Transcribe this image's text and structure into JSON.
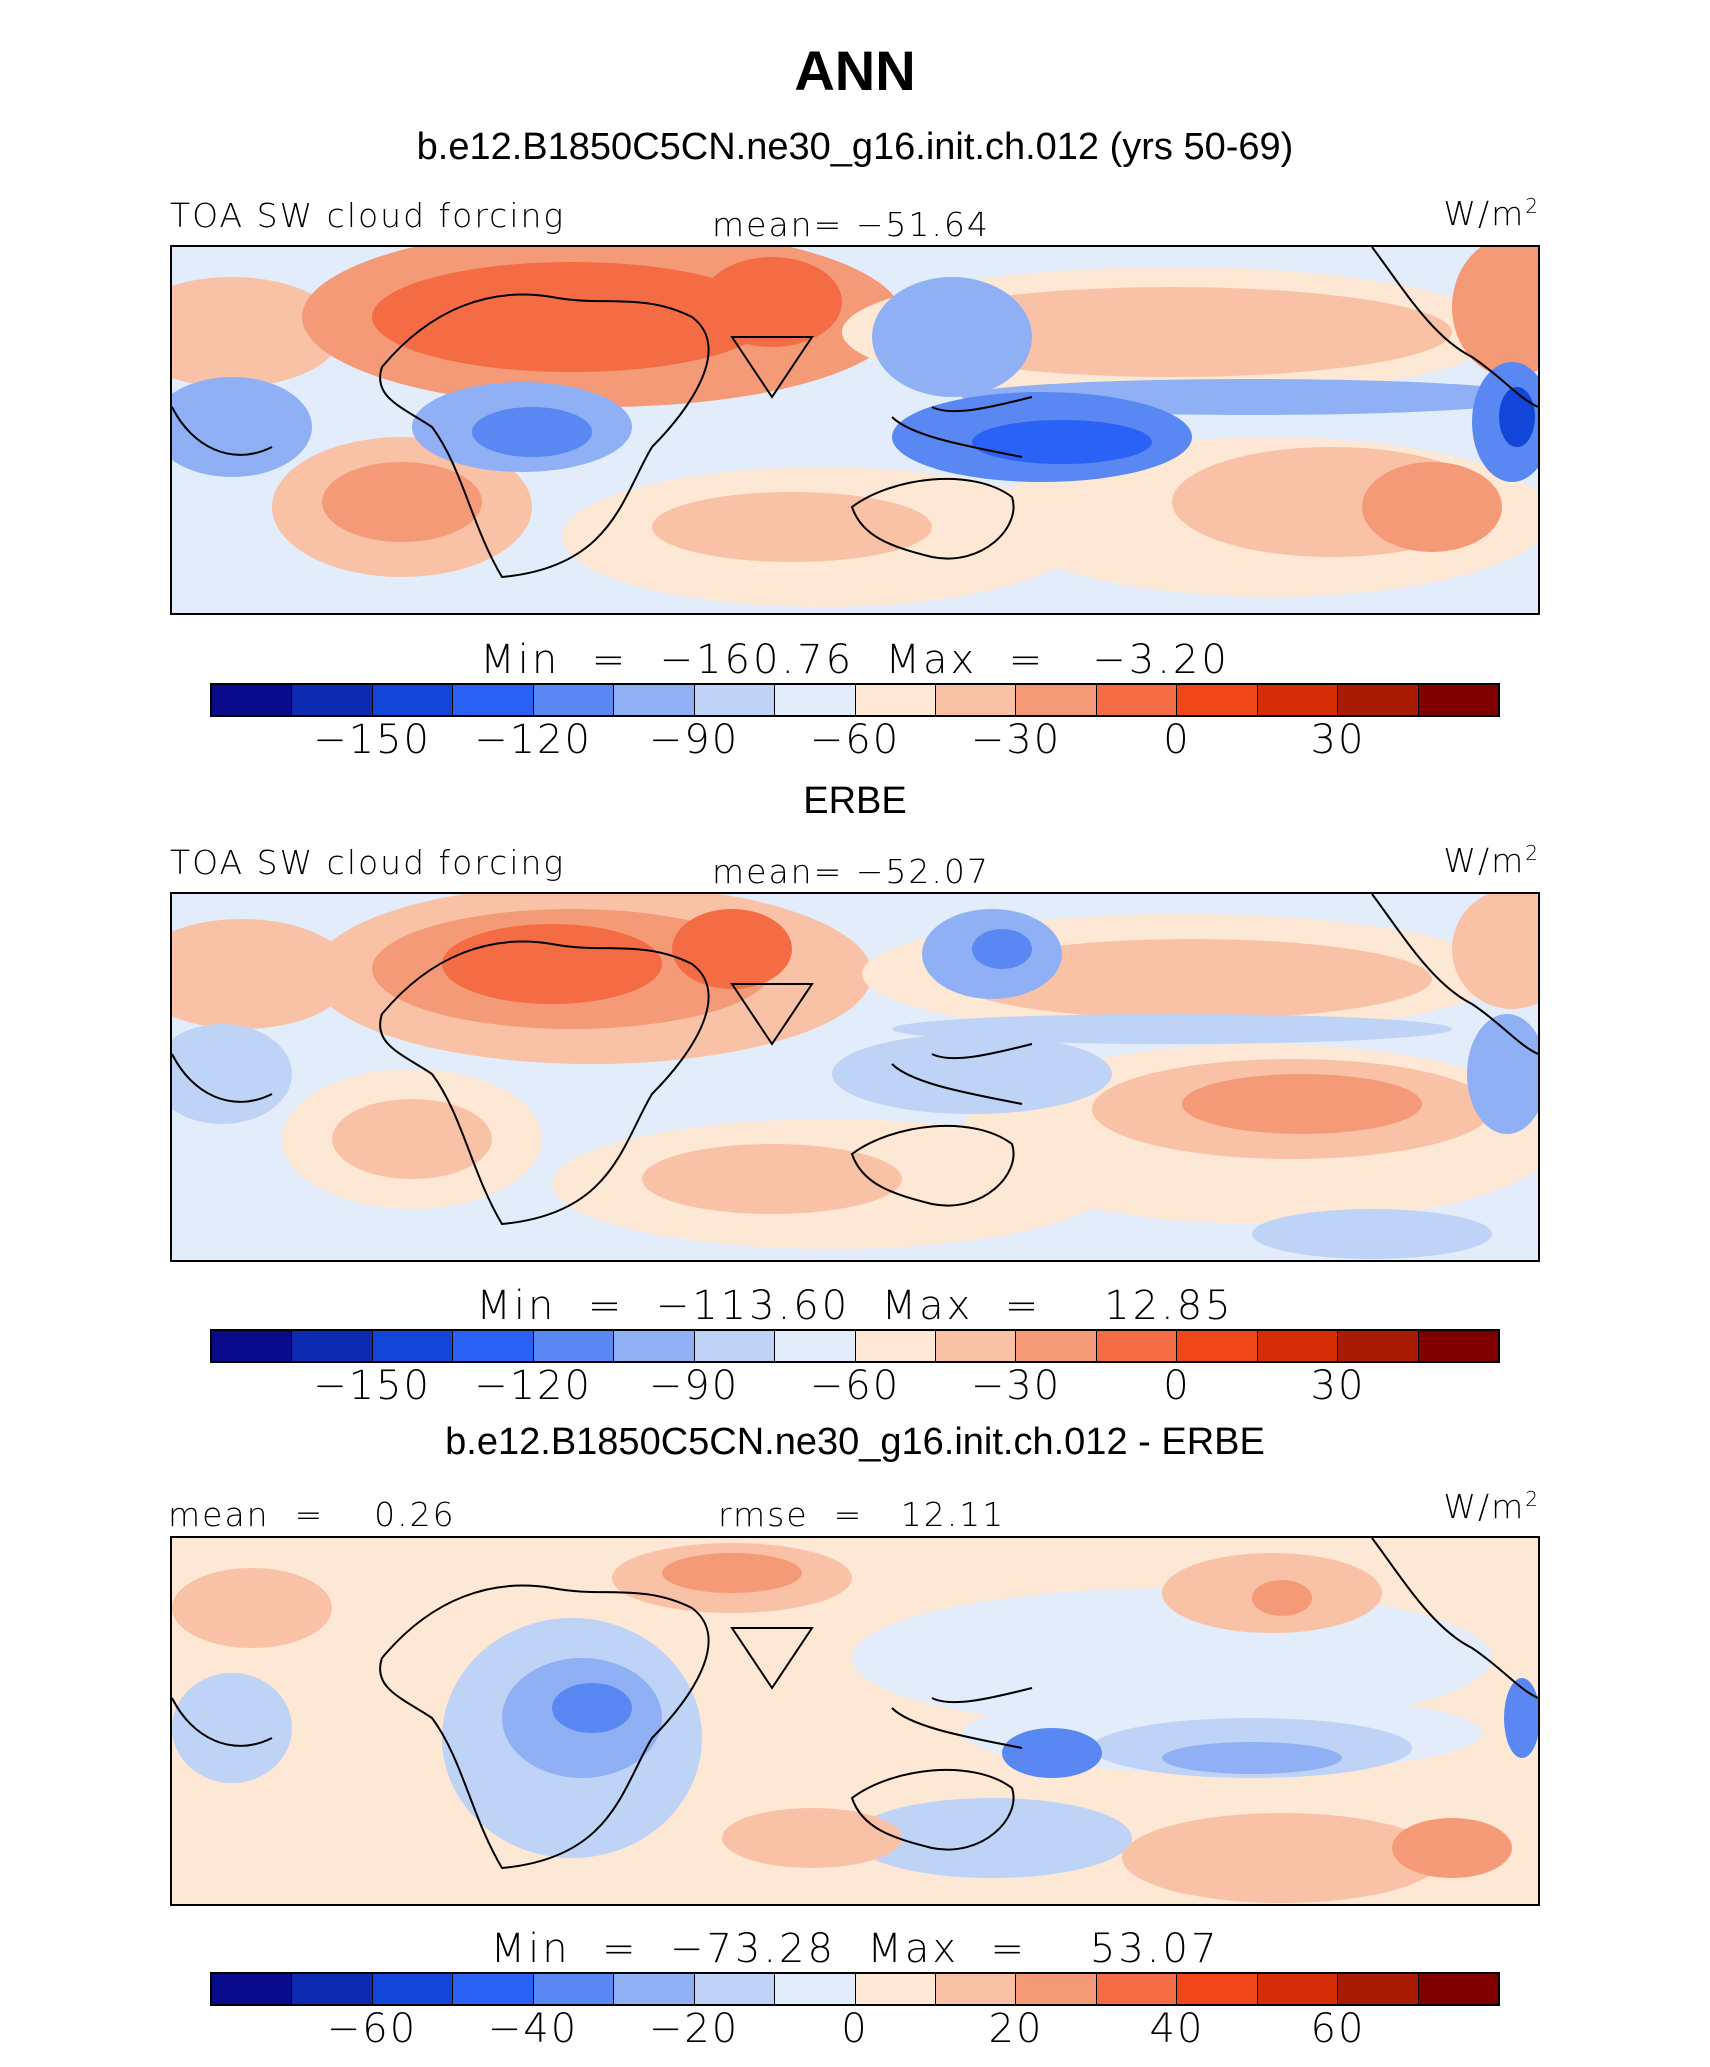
{
  "title": "ANN",
  "panels": [
    {
      "subtitle": "b.e12.B1850C5CN.ne30_g16.init.ch.012 (yrs 50-69)",
      "left_label": "TOA SW cloud forcing",
      "center_label": "mean=  −51.64",
      "units_base": "W/m",
      "units_exp": "2",
      "stats": "Min  =  −160.76  Max  =   −3.20",
      "colorbar_ticks": [
        "−150",
        "−120",
        "−90",
        "−60",
        "−30",
        "0",
        "30"
      ]
    },
    {
      "subtitle": "ERBE",
      "left_label": "TOA SW cloud forcing",
      "center_label": "mean=  −52.07",
      "units_base": "W/m",
      "units_exp": "2",
      "stats": "Min  =  −113.60  Max  =    12.85",
      "colorbar_ticks": [
        "−150",
        "−120",
        "−90",
        "−60",
        "−30",
        "0",
        "30"
      ]
    },
    {
      "subtitle": "b.e12.B1850C5CN.ne30_g16.init.ch.012 - ERBE",
      "left_label": "mean  =    0.26",
      "center_label": "rmse  =   12.11",
      "units_base": "W/m",
      "units_exp": "2",
      "stats": "Min  =  −73.28  Max  =    53.07",
      "colorbar_ticks": [
        "−60",
        "−40",
        "−20",
        "0",
        "20",
        "40",
        "60"
      ]
    }
  ],
  "colorbar_colors": [
    "#0a0a8c",
    "#0c2bb0",
    "#1146d8",
    "#2a62f5",
    "#5a88f2",
    "#8fb0f4",
    "#bfd3f6",
    "#e2ecfa",
    "#fde7d5",
    "#f9c2a6",
    "#f59a77",
    "#f46c43",
    "#f04619",
    "#d52e06",
    "#a81b04",
    "#800000"
  ],
  "chart_data": [
    {
      "type": "heatmap",
      "title": "b.e12.B1850C5CN.ne30_g16.init.ch.012 (yrs 50-69)",
      "variable": "TOA SW cloud forcing",
      "units": "W/m2",
      "mean": -51.64,
      "min": -160.76,
      "max": -3.2,
      "colorbar_ticks": [
        -150,
        -120,
        -90,
        -60,
        -30,
        0,
        30
      ]
    },
    {
      "type": "heatmap",
      "title": "ERBE",
      "variable": "TOA SW cloud forcing",
      "units": "W/m2",
      "mean": -52.07,
      "min": -113.6,
      "max": 12.85,
      "colorbar_ticks": [
        -150,
        -120,
        -90,
        -60,
        -30,
        0,
        30
      ]
    },
    {
      "type": "heatmap",
      "title": "b.e12.B1850C5CN.ne30_g16.init.ch.012 - ERBE",
      "units": "W/m2",
      "mean": 0.26,
      "rmse": 12.11,
      "min": -73.28,
      "max": 53.07,
      "colorbar_ticks": [
        -60,
        -40,
        -20,
        0,
        20,
        40,
        60
      ]
    }
  ]
}
